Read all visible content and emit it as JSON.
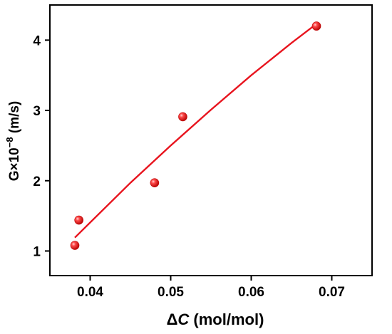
{
  "chart_data": {
    "type": "scatter",
    "xlabel": {
      "prefix": "Δ",
      "variable": "C",
      "suffix": " (mol/mol)"
    },
    "ylabel": {
      "base": "G×10",
      "exponent": "−8",
      "suffix": " (m/s)"
    },
    "xlim": [
      0.035,
      0.075
    ],
    "ylim": [
      0.65,
      4.5
    ],
    "x_ticks": [
      0.04,
      0.05,
      0.06,
      0.07
    ],
    "x_tick_labels": [
      "0.04",
      "0.05",
      "0.06",
      "0.07"
    ],
    "y_ticks": [
      1,
      2,
      3,
      4
    ],
    "y_tick_labels": [
      "1",
      "2",
      "3",
      "4"
    ],
    "grid": false,
    "series": [
      {
        "type": "scatter",
        "color": "#e8141e",
        "x": [
          0.0381,
          0.0386,
          0.048,
          0.0515,
          0.0681
        ],
        "y": [
          1.08,
          1.44,
          1.97,
          2.91,
          4.2
        ]
      },
      {
        "type": "fit-line",
        "color": "#e8141e",
        "x": [
          0.0381,
          0.045,
          0.05,
          0.055,
          0.06,
          0.065,
          0.0681
        ],
        "y": [
          1.19,
          1.97,
          2.5,
          3.01,
          3.5,
          3.96,
          4.23
        ]
      }
    ]
  }
}
